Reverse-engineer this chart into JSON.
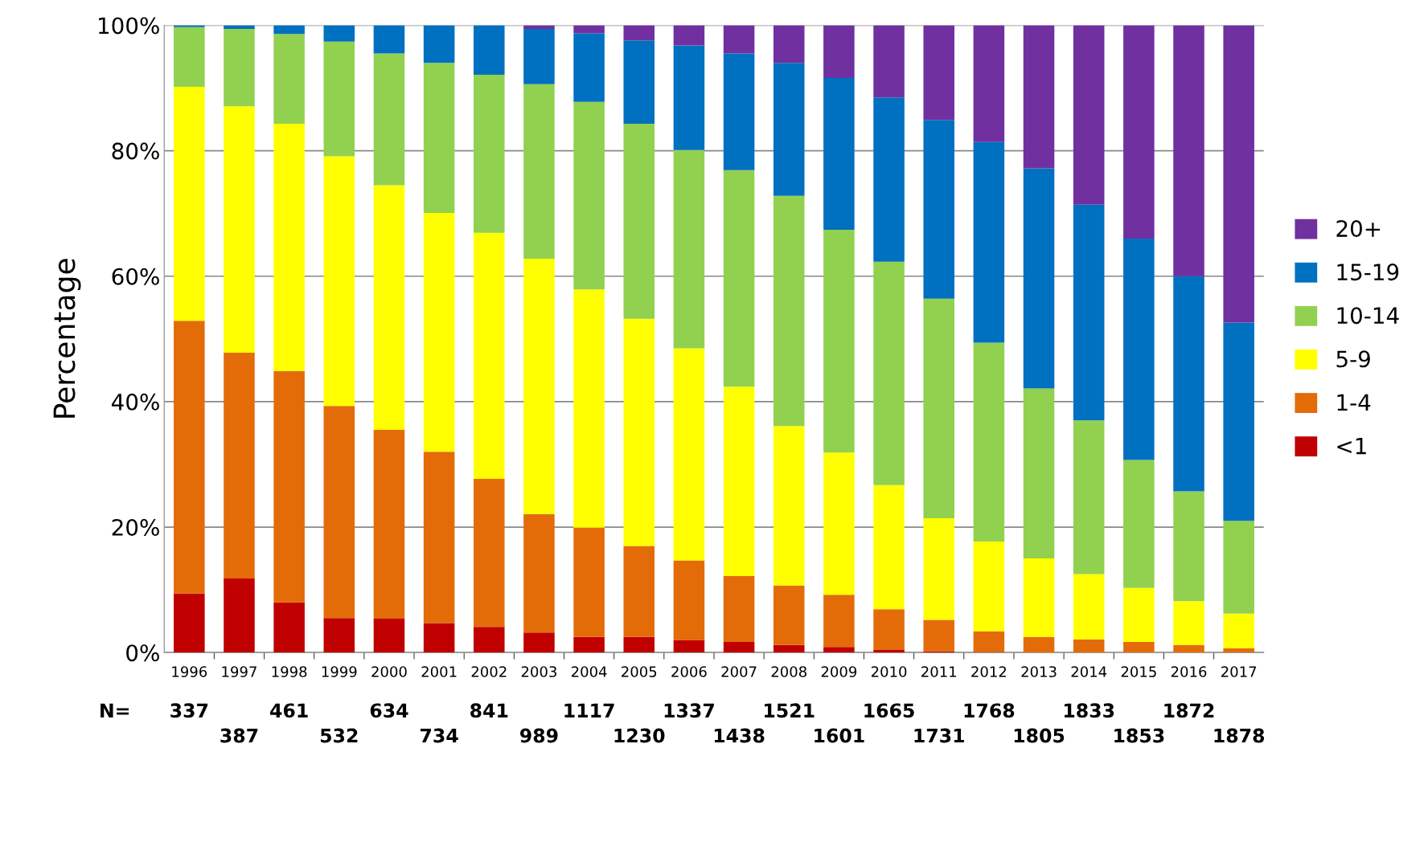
{
  "chart_data": {
    "type": "bar",
    "stacked": true,
    "ylabel": "Percentage",
    "categories": [
      "1996",
      "1997",
      "1998",
      "1999",
      "2000",
      "2001",
      "2002",
      "2003",
      "2004",
      "2005",
      "2006",
      "2007",
      "2008",
      "2009",
      "2010",
      "2011",
      "2012",
      "2013",
      "2014",
      "2015",
      "2016",
      "2017"
    ],
    "series": [
      {
        "name": "<1",
        "color": "#c00000",
        "values": [
          9.4,
          11.8,
          8.0,
          5.5,
          5.4,
          4.7,
          4.1,
          3.2,
          2.5,
          2.5,
          2.0,
          1.7,
          1.2,
          0.9,
          0.4,
          0.2,
          0.1,
          0,
          0,
          0,
          0,
          0
        ]
      },
      {
        "name": "1-4",
        "color": "#e36c09",
        "values": [
          43.5,
          36.0,
          36.9,
          33.8,
          30.1,
          27.3,
          23.6,
          18.9,
          17.4,
          14.5,
          12.7,
          10.5,
          9.5,
          8.3,
          6.5,
          5.0,
          3.3,
          2.5,
          2.1,
          1.7,
          1.2,
          0.7
        ]
      },
      {
        "name": "5-9",
        "color": "#ffff00",
        "values": [
          37.3,
          39.3,
          39.4,
          39.8,
          39.0,
          38.1,
          39.2,
          40.7,
          38.0,
          36.2,
          33.8,
          30.2,
          25.4,
          22.7,
          19.8,
          16.2,
          14.3,
          12.5,
          10.4,
          8.6,
          7.0,
          5.5
        ]
      },
      {
        "name": "10-14",
        "color": "#92d050",
        "values": [
          9.5,
          12.3,
          14.3,
          18.3,
          21.0,
          23.9,
          25.2,
          27.8,
          29.9,
          31.1,
          31.6,
          34.5,
          36.7,
          35.5,
          35.6,
          35.0,
          31.7,
          27.1,
          24.5,
          20.4,
          17.5,
          14.8
        ]
      },
      {
        "name": "15-19",
        "color": "#0070c0",
        "values": [
          0.3,
          0.6,
          1.4,
          2.6,
          4.5,
          6.0,
          7.9,
          8.8,
          10.9,
          13.3,
          16.7,
          18.6,
          21.2,
          24.2,
          26.2,
          28.5,
          32.0,
          35.1,
          34.4,
          35.3,
          34.3,
          31.6
        ]
      },
      {
        "name": "20+",
        "color": "#7030a0",
        "values": [
          0,
          0,
          0,
          0,
          0,
          0,
          0,
          0.6,
          1.3,
          2.4,
          3.2,
          4.5,
          6.0,
          8.4,
          11.5,
          15.1,
          18.6,
          22.8,
          28.6,
          34.0,
          40.0,
          47.4
        ]
      }
    ],
    "ylim": [
      0,
      100
    ],
    "yticks": [
      {
        "value": 0,
        "label": "0%"
      },
      {
        "value": 20,
        "label": "20%"
      },
      {
        "value": 40,
        "label": "40%"
      },
      {
        "value": 60,
        "label": "60%"
      },
      {
        "value": 80,
        "label": "80%"
      },
      {
        "value": 100,
        "label": "100%"
      }
    ],
    "grid": "y",
    "legend": "right",
    "annotations": [
      "N=",
      "337",
      "387",
      "461",
      "532",
      "634",
      "734",
      "841",
      "989",
      "1117",
      "1230",
      "1337",
      "1438",
      "1521",
      "1601",
      "1665",
      "1731",
      "1768",
      "1805",
      "1833",
      "1853",
      "1872",
      "1878"
    ]
  }
}
